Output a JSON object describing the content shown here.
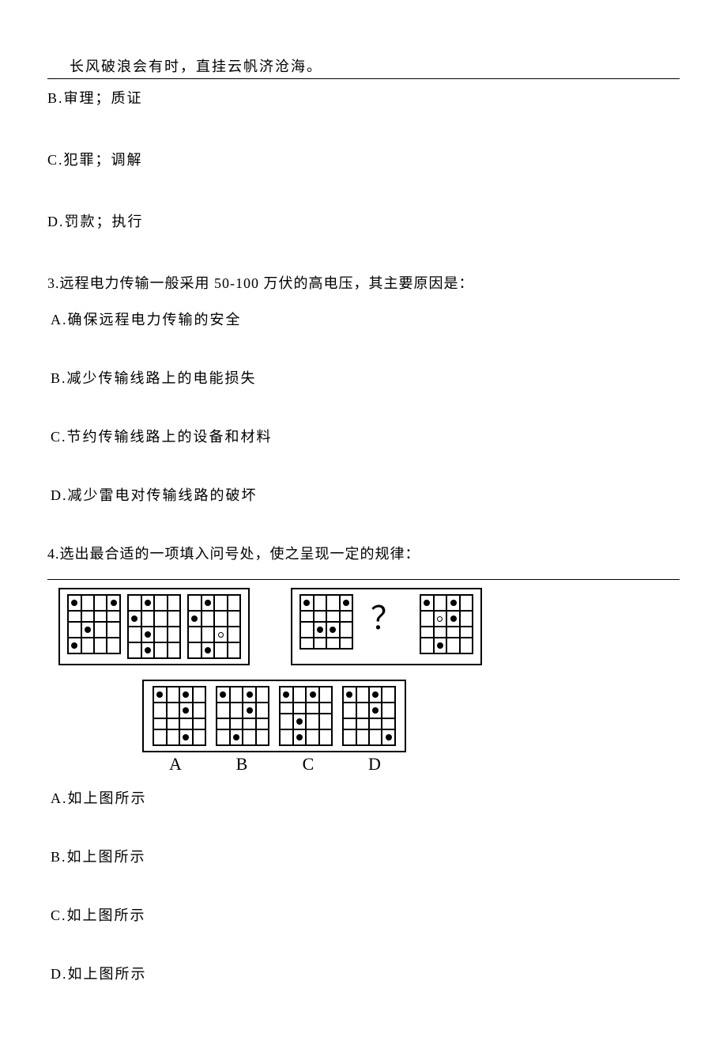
{
  "colors": {
    "text": "#000000",
    "bg": "#ffffff",
    "rule": "#000000"
  },
  "typography": {
    "body_font": "SimSun",
    "body_size_pt": 14,
    "label_font": "Times New Roman",
    "label_size_pt": 16
  },
  "header_quote": "长风破浪会有时，直挂云帆济沧海。",
  "q2_options": {
    "B": "B.审理；质证",
    "C": "C.犯罪；调解",
    "D": "D.罚款；执行"
  },
  "q3": {
    "stem": "3.远程电力传输一般采用 50-100 万伏的高电压，其主要原因是：",
    "A": "A.确保远程电力传输的安全",
    "B": "B.减少传输线路上的电能损失",
    "C": "C.节约传输线路上的设备和材料",
    "D": "D.减少雷电对传输线路的破坏"
  },
  "q4": {
    "stem": "4.选出最合适的一项填入问号处，使之呈现一定的规律：",
    "figure": {
      "type": "grid-pattern-sequence",
      "grid_size": [
        4,
        4
      ],
      "cell_border_color": "#000000",
      "frame_border_color": "#000000",
      "dot_fill_color": "#000000",
      "dot_open_color": "#ffffff",
      "row1_group1": [
        {
          "filled": [
            [
              0,
              0
            ],
            [
              0,
              3
            ],
            [
              2,
              1
            ],
            [
              3,
              0
            ]
          ],
          "open": []
        },
        {
          "filled": [
            [
              0,
              1
            ],
            [
              1,
              0
            ],
            [
              2,
              1
            ],
            [
              3,
              1
            ]
          ],
          "open": []
        },
        {
          "filled": [
            [
              0,
              1
            ],
            [
              1,
              0
            ],
            [
              3,
              1
            ]
          ],
          "open": [
            [
              2,
              2
            ]
          ]
        }
      ],
      "row1_group2": [
        {
          "filled": [
            [
              0,
              0
            ],
            [
              0,
              3
            ],
            [
              2,
              1
            ],
            [
              2,
              2
            ]
          ],
          "open": []
        },
        "QUESTION_MARK",
        {
          "filled": [
            [
              0,
              0
            ],
            [
              0,
              2
            ],
            [
              1,
              2
            ],
            [
              3,
              1
            ]
          ],
          "open": [
            [
              1,
              1
            ]
          ]
        }
      ],
      "options": {
        "A": {
          "filled": [
            [
              0,
              0
            ],
            [
              0,
              2
            ],
            [
              1,
              2
            ],
            [
              3,
              2
            ]
          ],
          "open": []
        },
        "B": {
          "filled": [
            [
              0,
              0
            ],
            [
              0,
              2
            ],
            [
              1,
              2
            ],
            [
              3,
              1
            ]
          ],
          "open": []
        },
        "C": {
          "filled": [
            [
              0,
              0
            ],
            [
              0,
              2
            ],
            [
              2,
              1
            ],
            [
              3,
              1
            ]
          ],
          "open": []
        },
        "D": {
          "filled": [
            [
              0,
              0
            ],
            [
              0,
              2
            ],
            [
              1,
              2
            ],
            [
              3,
              3
            ]
          ],
          "open": []
        }
      },
      "qmark": "？"
    },
    "option_labels": {
      "A": "A",
      "B": "B",
      "C": "C",
      "D": "D"
    },
    "A": "A.如上图所示",
    "B": "B.如上图所示",
    "C": "C.如上图所示",
    "D": "D.如上图所示"
  }
}
